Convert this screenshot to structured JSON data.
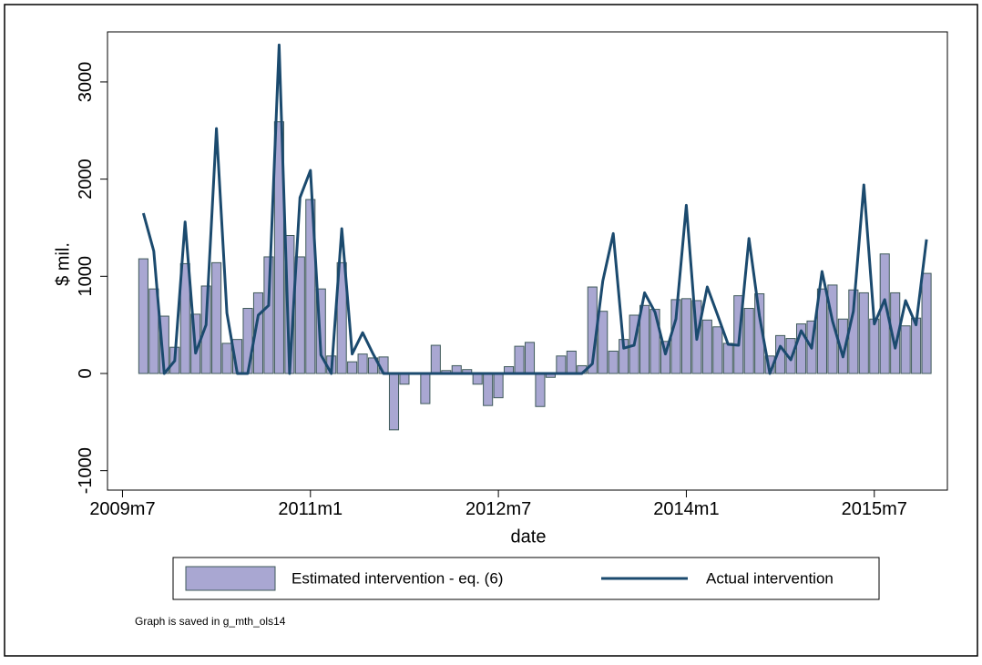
{
  "chart_data": {
    "type": "combo",
    "y_label": "$ mil.",
    "x_label": "date",
    "note": "Graph is saved in g_mth_ols14",
    "x": [
      "2009m9",
      "2009m10",
      "2009m11",
      "2009m12",
      "2010m1",
      "2010m2",
      "2010m3",
      "2010m4",
      "2010m5",
      "2010m6",
      "2010m7",
      "2010m8",
      "2010m9",
      "2010m10",
      "2010m11",
      "2010m12",
      "2011m1",
      "2011m2",
      "2011m3",
      "2011m4",
      "2011m5",
      "2011m6",
      "2011m7",
      "2011m8",
      "2011m9",
      "2011m10",
      "2011m11",
      "2011m12",
      "2012m1",
      "2012m2",
      "2012m3",
      "2012m4",
      "2012m5",
      "2012m6",
      "2012m7",
      "2012m8",
      "2012m9",
      "2012m10",
      "2012m11",
      "2012m12",
      "2013m1",
      "2013m2",
      "2013m3",
      "2013m4",
      "2013m5",
      "2013m6",
      "2013m7",
      "2013m8",
      "2013m9",
      "2013m10",
      "2013m11",
      "2013m12",
      "2014m1",
      "2014m2",
      "2014m3",
      "2014m4",
      "2014m5",
      "2014m6",
      "2014m7",
      "2014m8",
      "2014m9",
      "2014m10",
      "2014m11",
      "2014m12",
      "2015m1",
      "2015m2",
      "2015m3",
      "2015m4",
      "2015m5",
      "2015m6",
      "2015m7",
      "2015m8",
      "2015m9",
      "2015m10",
      "2015m11",
      "2015m12"
    ],
    "series": [
      {
        "name": "Estimated intervention - eq. (6)",
        "type": "bar",
        "color": "#a9a7d2",
        "values": [
          1180,
          870,
          590,
          270,
          1130,
          610,
          900,
          1140,
          310,
          350,
          670,
          830,
          1200,
          2590,
          1420,
          1200,
          1790,
          870,
          180,
          1140,
          120,
          200,
          160,
          170,
          -580,
          -110,
          0,
          -310,
          290,
          30,
          80,
          40,
          -110,
          -330,
          -250,
          70,
          280,
          320,
          -340,
          -40,
          180,
          230,
          80,
          890,
          640,
          230,
          350,
          600,
          700,
          660,
          330,
          760,
          770,
          750,
          550,
          480,
          310,
          800,
          670,
          820,
          180,
          390,
          360,
          510,
          540,
          870,
          910,
          560,
          860,
          830,
          560,
          1230,
          830,
          490,
          570,
          1030
        ]
      },
      {
        "name": "Actual intervention",
        "type": "line",
        "color": "#1b4a6e",
        "values": [
          1650,
          1260,
          0,
          130,
          1560,
          210,
          500,
          2520,
          620,
          0,
          0,
          600,
          700,
          3380,
          0,
          1810,
          2090,
          190,
          0,
          1490,
          200,
          420,
          200,
          0,
          0,
          0,
          0,
          0,
          0,
          0,
          0,
          0,
          0,
          0,
          0,
          0,
          0,
          0,
          0,
          0,
          0,
          0,
          0,
          100,
          950,
          1440,
          260,
          290,
          830,
          630,
          200,
          560,
          1730,
          350,
          890,
          600,
          300,
          290,
          1390,
          590,
          0,
          280,
          140,
          440,
          260,
          1050,
          540,
          170,
          640,
          1940,
          510,
          760,
          260,
          750,
          500,
          1380
        ]
      }
    ],
    "xlim": [
      "2009m6",
      "2016m2"
    ],
    "xticks": [
      "2009m7",
      "2011m1",
      "2012m7",
      "2014m1",
      "2015m7"
    ],
    "ylim": [
      -1200,
      3515
    ],
    "yticks": [
      -1000,
      0,
      1000,
      2000,
      3000
    ]
  }
}
